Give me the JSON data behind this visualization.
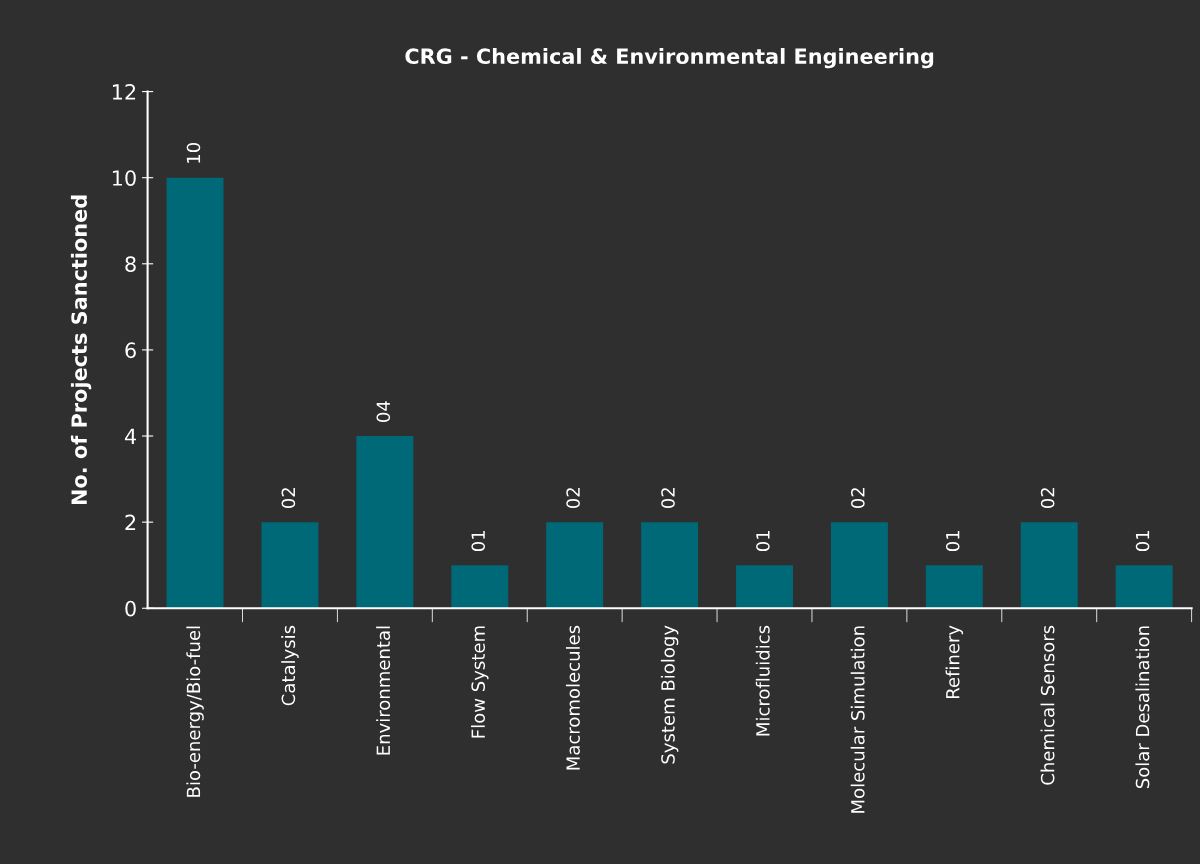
{
  "chart_data": {
    "type": "bar",
    "title": "CRG - Chemical & Environmental Engineering",
    "ylabel": "No. of Projects Sanctioned",
    "categories": [
      "Bio-energy/Bio-fuel",
      "Catalysis",
      "Environmental",
      "Flow System",
      "Macromolecules",
      "System Biology",
      "Microfluidics",
      "Molecular Simulation",
      "Refinery",
      "Chemical Sensors",
      "Solar Desalination"
    ],
    "values": [
      10,
      2,
      4,
      1,
      2,
      2,
      1,
      2,
      1,
      2,
      1
    ],
    "value_labels": [
      "10",
      "02",
      "04",
      "01",
      "02",
      "02",
      "01",
      "02",
      "01",
      "02",
      "01"
    ],
    "color": "#006977",
    "ylim": [
      0,
      12
    ],
    "yticks": [
      0,
      2,
      4,
      6,
      8,
      10,
      12
    ],
    "grid": false,
    "legend": false
  }
}
